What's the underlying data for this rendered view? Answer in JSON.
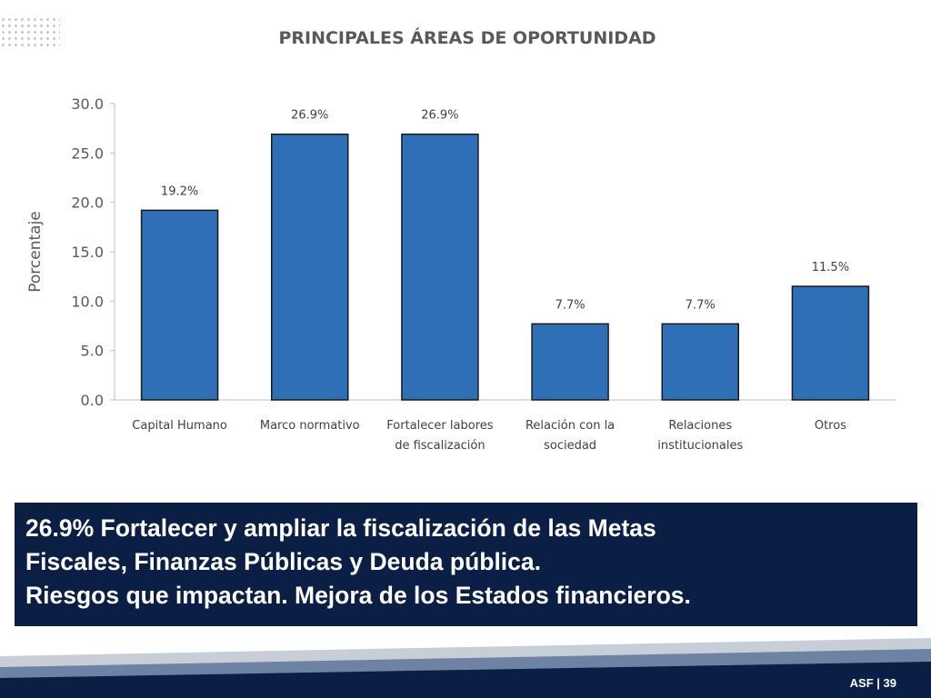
{
  "chart_data": {
    "type": "bar",
    "title": "PRINCIPALES ÁREAS  DE OPORTUNIDAD",
    "ylabel": "Porcentaje",
    "xlabel": "",
    "ylim": [
      0,
      30
    ],
    "yticks": [
      "0.0",
      "5.0",
      "10.0",
      "15.0",
      "20.0",
      "25.0",
      "30.0"
    ],
    "categories": [
      [
        "Capital Humano"
      ],
      [
        "Marco normativo"
      ],
      [
        "Fortalecer labores",
        "de fiscalización"
      ],
      [
        "Relación con la",
        "sociedad"
      ],
      [
        "Relaciones",
        "institucionales"
      ],
      [
        "Otros"
      ]
    ],
    "values": [
      19.2,
      26.9,
      26.9,
      7.7,
      7.7,
      11.5
    ],
    "data_labels": [
      "19.2%",
      "26.9%",
      "26.9%",
      "7.7%",
      "7.7%",
      "11.5%"
    ],
    "grid": false,
    "bar_color": "#2e6fb6",
    "bar_edge_color": "#1a1a1a"
  },
  "note": {
    "line1": "26.9% Fortalecer y ampliar la fiscalización de las Metas",
    "line2": "Fiscales, Finanzas Públicas y Deuda pública.",
    "line3": "Riesgos que impactan. Mejora de los Estados financieros."
  },
  "footer": {
    "label": "ASF | 39"
  },
  "colors": {
    "note_bg": "#0b1f45",
    "footer_band": "#0b1f45"
  }
}
